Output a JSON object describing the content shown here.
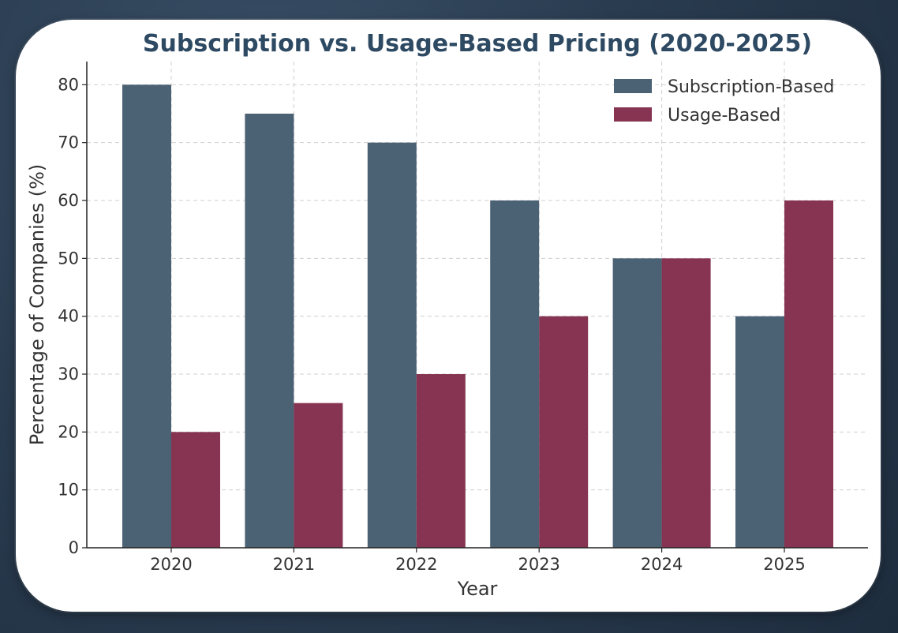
{
  "chart_data": {
    "type": "bar",
    "title": "Subscription vs. Usage-Based Pricing (2020-2025)",
    "xlabel": "Year",
    "ylabel": "Percentage of Companies (%)",
    "categories": [
      "2020",
      "2021",
      "2022",
      "2023",
      "2024",
      "2025"
    ],
    "series": [
      {
        "name": "Subscription-Based",
        "values": [
          80,
          75,
          70,
          60,
          50,
          40
        ],
        "color": "#4b6174"
      },
      {
        "name": "Usage-Based",
        "values": [
          20,
          25,
          30,
          40,
          50,
          60
        ],
        "color": "#863452"
      }
    ],
    "ylim": [
      0,
      84
    ],
    "yticks": [
      0,
      10,
      20,
      30,
      40,
      50,
      60,
      70,
      80
    ],
    "grid": true,
    "legend_position": "top-right",
    "title_color": "#2e4a63"
  }
}
